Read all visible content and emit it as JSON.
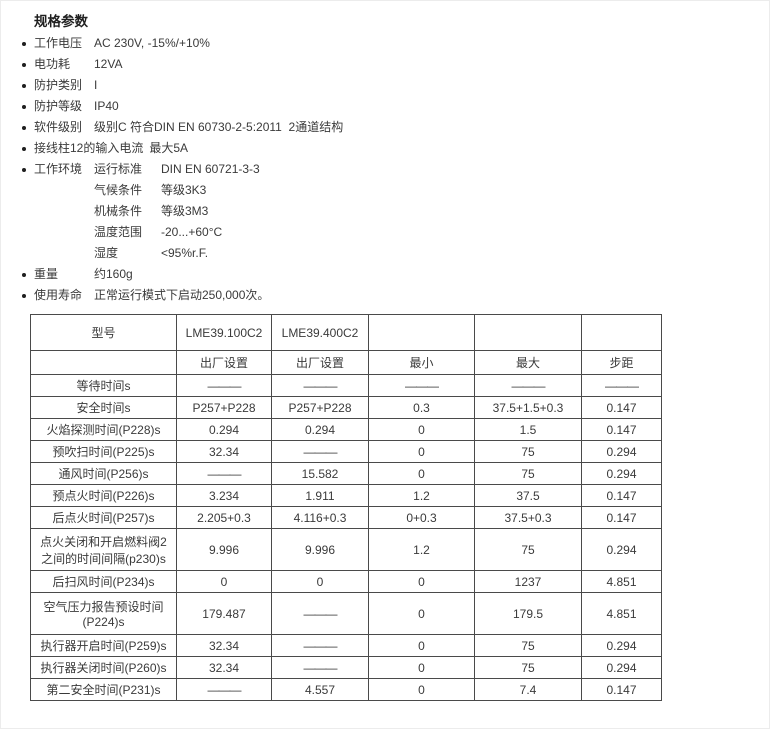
{
  "page_title": "规格参数",
  "specs": [
    {
      "label": "工作电压",
      "value": "AC 230V, -15%/+10%"
    },
    {
      "label": "电功耗",
      "value": "12VA"
    },
    {
      "label": "防护类别",
      "value": "I"
    },
    {
      "label": "防护等级",
      "value": "IP40"
    },
    {
      "label": "软件级别",
      "value": "级别C 符合DIN EN 60730-2-5:2011  2通道结构"
    },
    {
      "label": "接线柱12的输入电流",
      "value": "最大5A"
    },
    {
      "label": "工作环境",
      "sub": [
        {
          "label": "运行标准",
          "value": "DIN EN 60721-3-3"
        },
        {
          "label": "气候条件",
          "value": "等级3K3"
        },
        {
          "label": "机械条件",
          "value": "等级3M3"
        },
        {
          "label": "温度范围",
          "value": "-20...+60°C"
        },
        {
          "label": "湿度",
          "value": "<95%r.F."
        }
      ]
    },
    {
      "label": "重量",
      "value": "约160g"
    },
    {
      "label": "使用寿命",
      "value": "正常运行模式下启动250,000次。"
    }
  ],
  "table": {
    "header_row1": [
      "型号",
      "LME39.100C2",
      "LME39.400C2",
      "",
      "",
      ""
    ],
    "header_row2": [
      "",
      "出厂设置",
      "出厂设置",
      "最小",
      "最大",
      "步距"
    ],
    "rows": [
      {
        "label": "等待时间s",
        "cells": [
          "———",
          "———",
          "———",
          "———",
          "———"
        ]
      },
      {
        "label": "安全时间s",
        "cells": [
          "P257+P228",
          "P257+P228",
          "0.3",
          "37.5+1.5+0.3",
          "0.147"
        ]
      },
      {
        "label": "火焰探测时间(P228)s",
        "cells": [
          "0.294",
          "0.294",
          "0",
          "1.5",
          "0.147"
        ]
      },
      {
        "label": "预吹扫时间(P225)s",
        "cells": [
          "32.34",
          "———",
          "0",
          "75",
          "0.294"
        ]
      },
      {
        "label": "通风时间(P256)s",
        "cells": [
          "———",
          "15.582",
          "0",
          "75",
          "0.294"
        ]
      },
      {
        "label": "预点火时间(P226)s",
        "cells": [
          "3.234",
          "1.911",
          "1.2",
          "37.5",
          "0.147"
        ]
      },
      {
        "label": "后点火时间(P257)s",
        "cells": [
          "2.205+0.3",
          "4.116+0.3",
          "0+0.3",
          "37.5+0.3",
          "0.147"
        ]
      },
      {
        "label": "点火关闭和开启燃料阀2\n之间的时间间隔(p230)s",
        "cells": [
          "9.996",
          "9.996",
          "1.2",
          "75",
          "0.294"
        ]
      },
      {
        "label": "后扫风时间(P234)s",
        "cells": [
          "0",
          "0",
          "0",
          "1237",
          "4.851"
        ]
      },
      {
        "label": "空气压力报告预设时间\n(P224)s",
        "cells": [
          "179.487",
          "———",
          "0",
          "179.5",
          "4.851"
        ]
      },
      {
        "label": "执行器开启时间(P259)s",
        "cells": [
          "32.34",
          "———",
          "0",
          "75",
          "0.294"
        ]
      },
      {
        "label": "执行器关闭时间(P260)s",
        "cells": [
          "32.34",
          "———",
          "0",
          "75",
          "0.294"
        ]
      },
      {
        "label": "第二安全时间(P231)s",
        "cells": [
          "———",
          "4.557",
          "0",
          "7.4",
          "0.147"
        ]
      }
    ]
  }
}
